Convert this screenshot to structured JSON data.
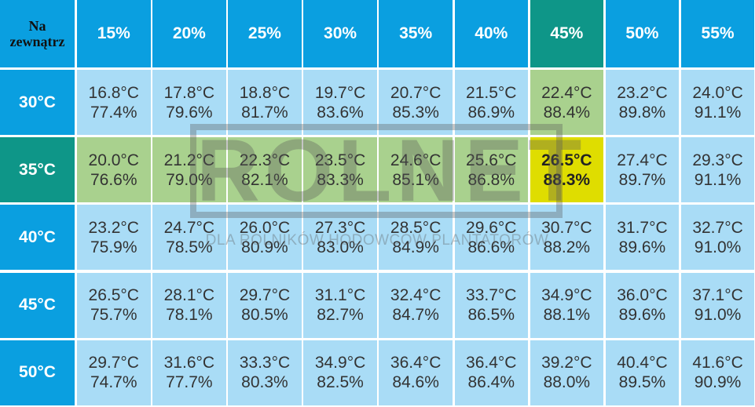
{
  "table": {
    "corner": "Na zewnątrz",
    "columns": [
      "15%",
      "20%",
      "25%",
      "30%",
      "35%",
      "40%",
      "45%",
      "50%",
      "55%"
    ],
    "rows": [
      {
        "label": "30°C",
        "cells": [
          [
            "16.8°C",
            "77.4%"
          ],
          [
            "17.8°C",
            "79.6%"
          ],
          [
            "18.8°C",
            "81.7%"
          ],
          [
            "19.7°C",
            "83.6%"
          ],
          [
            "20.7°C",
            "85.3%"
          ],
          [
            "21.5°C",
            "86.9%"
          ],
          [
            "22.4°C",
            "88.4%"
          ],
          [
            "23.2°C",
            "89.8%"
          ],
          [
            "24.0°C",
            "91.1%"
          ]
        ]
      },
      {
        "label": "35°C",
        "cells": [
          [
            "20.0°C",
            "76.6%"
          ],
          [
            "21.2°C",
            "79.0%"
          ],
          [
            "22.3°C",
            "82.1%"
          ],
          [
            "23.5°C",
            "83.3%"
          ],
          [
            "24.6°C",
            "85.1%"
          ],
          [
            "25.6°C",
            "86.8%"
          ],
          [
            "26.5°C",
            "88.3%"
          ],
          [
            "27.4°C",
            "89.7%"
          ],
          [
            "29.3°C",
            "91.1%"
          ]
        ]
      },
      {
        "label": "40°C",
        "cells": [
          [
            "23.2°C",
            "75.9%"
          ],
          [
            "24.7°C",
            "78.5%"
          ],
          [
            "26.0°C",
            "80.9%"
          ],
          [
            "27.3°C",
            "83.0%"
          ],
          [
            "28.5°C",
            "84.9%"
          ],
          [
            "29.6°C",
            "86.6%"
          ],
          [
            "30.7°C",
            "88.2%"
          ],
          [
            "31.7°C",
            "89.6%"
          ],
          [
            "32.7°C",
            "91.0%"
          ]
        ]
      },
      {
        "label": "45°C",
        "cells": [
          [
            "26.5°C",
            "75.7%"
          ],
          [
            "28.1°C",
            "78.1%"
          ],
          [
            "29.7°C",
            "80.5%"
          ],
          [
            "31.1°C",
            "82.7%"
          ],
          [
            "32.4°C",
            "84.7%"
          ],
          [
            "33.7°C",
            "86.5%"
          ],
          [
            "34.9°C",
            "88.1%"
          ],
          [
            "36.0°C",
            "89.6%"
          ],
          [
            "37.1°C",
            "91.0%"
          ]
        ]
      },
      {
        "label": "50°C",
        "cells": [
          [
            "29.7°C",
            "74.7%"
          ],
          [
            "31.6°C",
            "77.7%"
          ],
          [
            "33.3°C",
            "80.3%"
          ],
          [
            "34.9°C",
            "82.5%"
          ],
          [
            "36.4°C",
            "84.6%"
          ],
          [
            "36.4°C",
            "86.4%"
          ],
          [
            "39.2°C",
            "88.0%"
          ],
          [
            "40.4°C",
            "89.5%"
          ],
          [
            "41.6°C",
            "90.9%"
          ]
        ]
      }
    ]
  },
  "watermark": {
    "logo": "ROLNET",
    "tagline": "DLA ROLNIKÓW HODOWCÓW PLANTATORÓW"
  }
}
